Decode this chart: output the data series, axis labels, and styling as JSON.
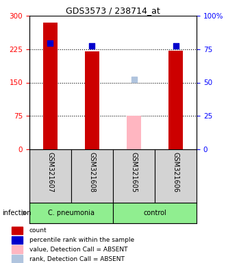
{
  "title": "GDS3573 / 238714_at",
  "samples": [
    "GSM321607",
    "GSM321608",
    "GSM321605",
    "GSM321606"
  ],
  "groups": [
    "C. pneumonia",
    "C. pneumonia",
    "control",
    "control"
  ],
  "group_label": "infection",
  "ylim_left": [
    0,
    300
  ],
  "ylim_right": [
    0,
    100
  ],
  "yticks_left": [
    0,
    75,
    150,
    225,
    300
  ],
  "yticks_right": [
    0,
    25,
    50,
    75,
    100
  ],
  "bar_values": [
    285,
    220,
    75,
    222
  ],
  "bar_absent": [
    false,
    false,
    true,
    false
  ],
  "bar_color_present": "#CC0000",
  "bar_color_absent": "#FFB6C1",
  "dot_values": [
    238,
    232,
    157,
    232
  ],
  "dot_absent": [
    false,
    false,
    true,
    false
  ],
  "dot_color_present": "#0000CC",
  "dot_color_absent": "#B0C4DE",
  "dot_size": 30,
  "bar_width": 0.35,
  "sample_bg_color": "#D3D3D3",
  "group_bg_colors": {
    "C. pneumonia": "#90EE90",
    "control": "#90EE90"
  },
  "legend_items": [
    {
      "label": "count",
      "color": "#CC0000"
    },
    {
      "label": "percentile rank within the sample",
      "color": "#0000CC"
    },
    {
      "label": "value, Detection Call = ABSENT",
      "color": "#FFB6C1"
    },
    {
      "label": "rank, Detection Call = ABSENT",
      "color": "#B0C4DE"
    }
  ],
  "title_fontsize": 9,
  "tick_fontsize": 7.5,
  "label_fontsize": 7,
  "legend_fontsize": 6.5
}
